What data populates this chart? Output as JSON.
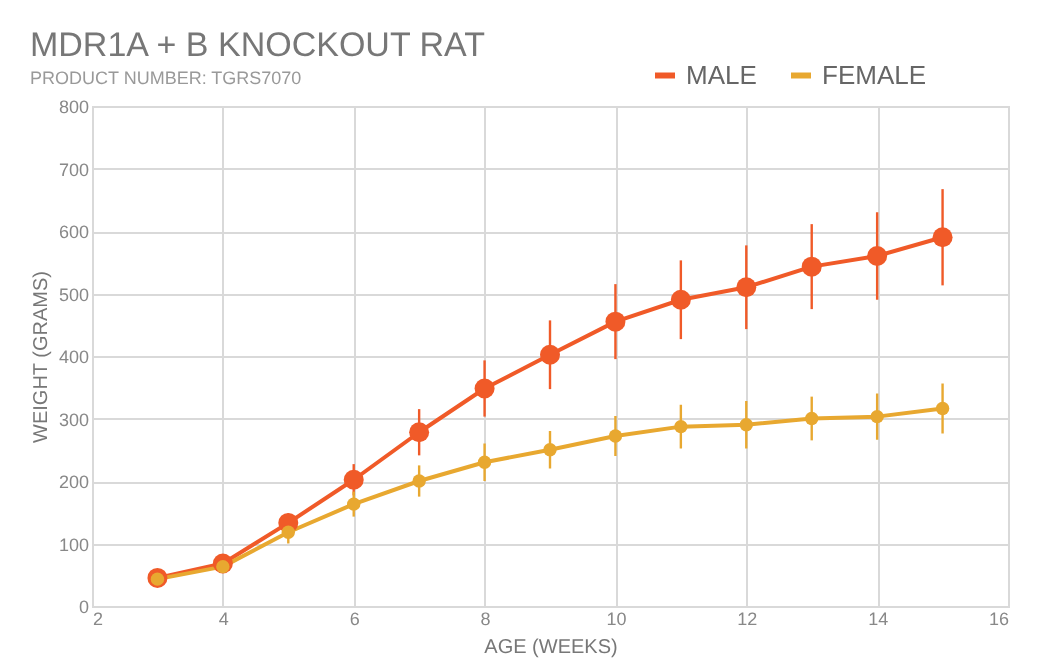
{
  "chart_data": {
    "type": "line",
    "title": "MDR1A + B KNOCKOUT RAT",
    "subtitle": "PRODUCT NUMBER: TGRS7070",
    "xlabel": "AGE (WEEKS)",
    "ylabel": "WEIGHT (GRAMS)",
    "x": [
      3,
      4,
      5,
      6,
      7,
      8,
      9,
      10,
      11,
      12,
      13,
      14,
      15
    ],
    "series": [
      {
        "name": "MALE",
        "color": "#f05a28",
        "values": [
          45,
          68,
          133,
          202,
          278,
          348,
          402,
          455,
          490,
          510,
          543,
          560,
          590
        ],
        "errors": [
          5,
          6,
          15,
          25,
          37,
          45,
          55,
          60,
          63,
          67,
          68,
          70,
          77
        ]
      },
      {
        "name": "FEMALE",
        "color": "#e8a830",
        "values": [
          43,
          63,
          118,
          163,
          200,
          230,
          250,
          272,
          287,
          290,
          300,
          303,
          316
        ],
        "errors": [
          5,
          6,
          18,
          20,
          25,
          30,
          30,
          32,
          35,
          38,
          35,
          37,
          40
        ]
      }
    ],
    "xlim": [
      2,
      16
    ],
    "xticks": [
      2,
      4,
      6,
      8,
      10,
      12,
      14,
      16
    ],
    "ylim": [
      0,
      800
    ],
    "yticks": [
      0,
      100,
      200,
      300,
      400,
      500,
      600,
      700,
      800
    ],
    "grid": true,
    "legend": "top right",
    "marker": "circle",
    "line_style": "solid"
  }
}
